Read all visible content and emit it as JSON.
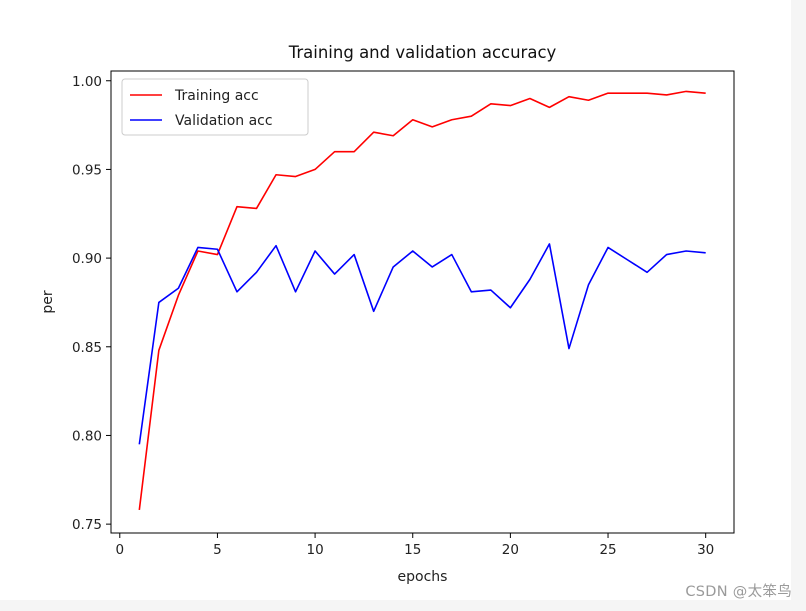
{
  "watermark": "CSDN @太笨鸟",
  "chart_data": {
    "type": "line",
    "title": "Training and validation accuracy",
    "xlabel": "epochs",
    "ylabel": "per",
    "xlim": [
      -0.45,
      31.45
    ],
    "ylim": [
      0.745,
      1.0055
    ],
    "xticks": [
      0,
      5,
      10,
      15,
      20,
      25,
      30
    ],
    "xtick_labels": [
      "0",
      "5",
      "10",
      "15",
      "20",
      "25",
      "30"
    ],
    "yticks": [
      0.75,
      0.8,
      0.85,
      0.9,
      0.95,
      1.0
    ],
    "ytick_labels": [
      "0.75",
      "0.80",
      "0.85",
      "0.90",
      "0.95",
      "1.00"
    ],
    "grid": false,
    "legend_position": "top-left",
    "x": [
      1,
      2,
      3,
      4,
      5,
      6,
      7,
      8,
      9,
      10,
      11,
      12,
      13,
      14,
      15,
      16,
      17,
      18,
      19,
      20,
      21,
      22,
      23,
      24,
      25,
      26,
      27,
      28,
      29,
      30
    ],
    "series": [
      {
        "name": "Training acc",
        "color": "#ff0000",
        "values": [
          0.758,
          0.848,
          0.879,
          0.904,
          0.902,
          0.929,
          0.928,
          0.947,
          0.946,
          0.95,
          0.96,
          0.96,
          0.971,
          0.969,
          0.978,
          0.974,
          0.978,
          0.98,
          0.987,
          0.986,
          0.99,
          0.985,
          0.991,
          0.989,
          0.993,
          0.993,
          0.993,
          0.992,
          0.994,
          0.993
        ]
      },
      {
        "name": "Validation acc",
        "color": "#0000ff",
        "values": [
          0.795,
          0.875,
          0.883,
          0.906,
          0.905,
          0.881,
          0.892,
          0.907,
          0.881,
          0.904,
          0.891,
          0.902,
          0.87,
          0.895,
          0.904,
          0.895,
          0.902,
          0.881,
          0.882,
          0.872,
          0.888,
          0.908,
          0.849,
          0.885,
          0.906,
          0.899,
          0.892,
          0.902,
          0.904,
          0.903
        ]
      }
    ]
  }
}
